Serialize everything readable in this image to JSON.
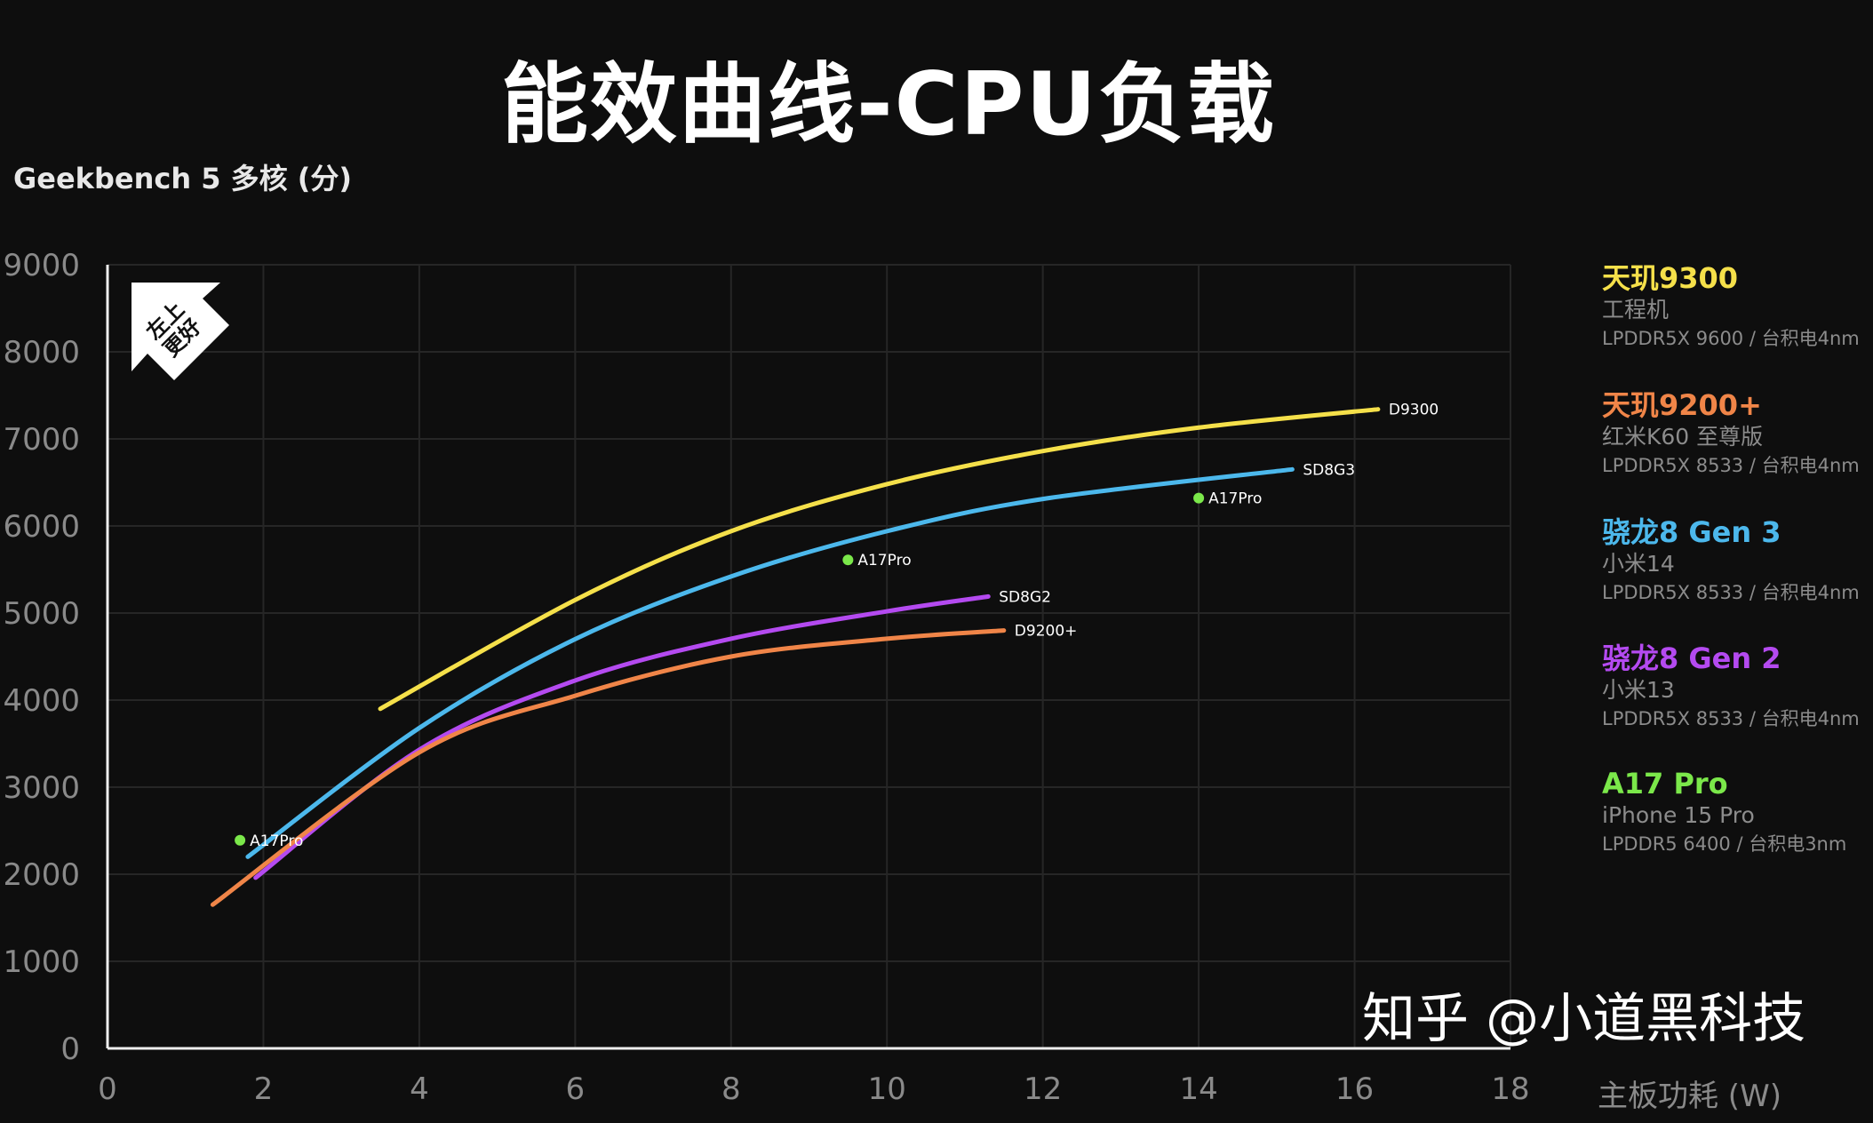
{
  "title": "能效曲线-CPU负载",
  "watermark": "知乎 @小道黑科技",
  "badge": "左上更好",
  "legend": [
    {
      "title": "天玑9300",
      "sub": "工程机",
      "spec": "LPDDR5X 9600 / 台积电4nm",
      "color": "#f5e04a"
    },
    {
      "title": "天玑9200+",
      "sub": "红米K60 至尊版",
      "spec": "LPDDR5X 8533 / 台积电4nm",
      "color": "#f08548"
    },
    {
      "title": "骁龙8 Gen 3",
      "sub": "小米14",
      "spec": "LPDDR5X 8533 / 台积电4nm",
      "color": "#4cb8ec"
    },
    {
      "title": "骁龙8 Gen 2",
      "sub": "小米13",
      "spec": "LPDDR5X 8533 / 台积电4nm",
      "color": "#b44af0"
    },
    {
      "title": "A17 Pro",
      "sub": "iPhone 15 Pro",
      "spec": "LPDDR5 6400 / 台积电3nm",
      "color": "#7be84a"
    }
  ],
  "chart_data": {
    "type": "line",
    "title": "能效曲线-CPU负载",
    "xlabel": "主板功耗 (W)",
    "ylabel": "Geekbench 5 多核 (分)",
    "xlim": [
      0,
      18
    ],
    "ylim": [
      0,
      9000
    ],
    "xticks": [
      "0",
      "2",
      "4",
      "6",
      "8",
      "10",
      "12",
      "14",
      "16",
      "18"
    ],
    "yticks": [
      "0",
      "1000",
      "2000",
      "3000",
      "4000",
      "5000",
      "6000",
      "7000",
      "8000",
      "9000"
    ],
    "grid": true,
    "series": [
      {
        "name": "D9300",
        "color": "#f5e04a",
        "x": [
          3.5,
          6,
          8,
          10,
          12,
          14,
          16.3
        ],
        "y": [
          3900,
          5150,
          5940,
          6480,
          6860,
          7130,
          7340
        ]
      },
      {
        "name": "SD8G3",
        "color": "#4cb8ec",
        "x": [
          1.8,
          4,
          6,
          8,
          10,
          12,
          15.2
        ],
        "y": [
          2200,
          3680,
          4700,
          5420,
          5940,
          6310,
          6650
        ]
      },
      {
        "name": "SD8G2",
        "color": "#b44af0",
        "x": [
          1.9,
          4,
          6,
          8,
          10,
          11.3
        ],
        "y": [
          1960,
          3430,
          4225,
          4705,
          5020,
          5190
        ]
      },
      {
        "name": "D9200+",
        "color": "#f08548",
        "x": [
          1.35,
          4,
          6,
          8,
          10,
          11.5
        ],
        "y": [
          1650,
          3400,
          4050,
          4500,
          4705,
          4800
        ]
      }
    ],
    "points": [
      {
        "name": "A17Pro",
        "color": "#7be84a",
        "x": 1.7,
        "y": 2390
      },
      {
        "name": "A17Pro",
        "color": "#7be84a",
        "x": 9.5,
        "y": 5610
      },
      {
        "name": "A17Pro",
        "color": "#7be84a",
        "x": 14.0,
        "y": 6320
      }
    ]
  }
}
